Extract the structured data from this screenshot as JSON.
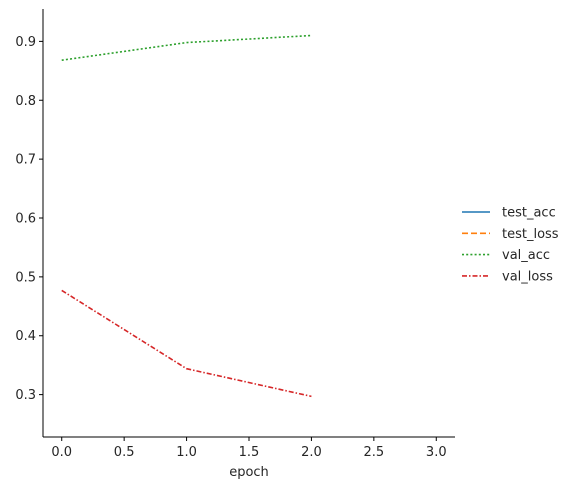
{
  "chart_data": {
    "type": "line",
    "xlabel": "epoch",
    "ylabel": "",
    "xlim": [
      -0.15,
      3.15
    ],
    "ylim": [
      0.228,
      0.955
    ],
    "x_ticks": [
      0.0,
      0.5,
      1.0,
      1.5,
      2.0,
      2.5,
      3.0
    ],
    "y_ticks": [
      0.3,
      0.4,
      0.5,
      0.6,
      0.7,
      0.8,
      0.9
    ],
    "grid": false,
    "legend_position": "right",
    "series": [
      {
        "name": "test_acc",
        "color": "#1f77b4",
        "dash": "solid",
        "x": [],
        "y": []
      },
      {
        "name": "test_loss",
        "color": "#ff7f0e",
        "dash": "dashed",
        "x": [],
        "y": []
      },
      {
        "name": "val_acc",
        "color": "#2ca02c",
        "dash": "dotted",
        "x": [
          0,
          1,
          2
        ],
        "y": [
          0.868,
          0.898,
          0.91
        ]
      },
      {
        "name": "val_loss",
        "color": "#d62728",
        "dash": "dashdot",
        "x": [
          0,
          1,
          2
        ],
        "y": [
          0.477,
          0.344,
          0.297
        ]
      }
    ]
  }
}
